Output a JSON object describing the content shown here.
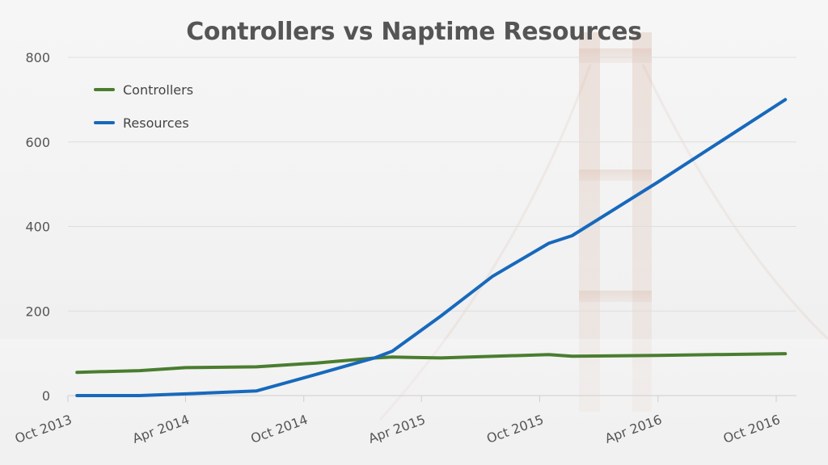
{
  "chart_data": {
    "type": "line",
    "title": "Controllers vs Naptime Resources",
    "xlabel": "",
    "ylabel": "",
    "ylim": [
      0,
      800
    ],
    "yticks": [
      0,
      200,
      400,
      600,
      800
    ],
    "xticks": [
      "Oct 2013",
      "Apr 2014",
      "Oct 2014",
      "Apr 2015",
      "Oct 2015",
      "Apr 2016",
      "Oct 2016"
    ],
    "grid": true,
    "legend_position": "top-left",
    "series": [
      {
        "name": "Controllers",
        "color": "#4a7d2f",
        "points": [
          {
            "x": "2013-10-15",
            "y": 55
          },
          {
            "x": "2014-01-20",
            "y": 59
          },
          {
            "x": "2014-04-01",
            "y": 66
          },
          {
            "x": "2014-07-20",
            "y": 68
          },
          {
            "x": "2014-10-20",
            "y": 77
          },
          {
            "x": "2015-01-20",
            "y": 89
          },
          {
            "x": "2015-02-15",
            "y": 91
          },
          {
            "x": "2015-05-01",
            "y": 89
          },
          {
            "x": "2015-10-15",
            "y": 97
          },
          {
            "x": "2015-11-20",
            "y": 93
          },
          {
            "x": "2016-04-01",
            "y": 95
          },
          {
            "x": "2016-10-15",
            "y": 99
          }
        ]
      },
      {
        "name": "Resources",
        "color": "#1769bc",
        "points": [
          {
            "x": "2013-10-15",
            "y": 0
          },
          {
            "x": "2014-01-20",
            "y": 0
          },
          {
            "x": "2014-04-01",
            "y": 4
          },
          {
            "x": "2014-07-20",
            "y": 11
          },
          {
            "x": "2014-10-20",
            "y": 50
          },
          {
            "x": "2015-01-20",
            "y": 90
          },
          {
            "x": "2015-02-15",
            "y": 105
          },
          {
            "x": "2015-05-01",
            "y": 188
          },
          {
            "x": "2015-07-20",
            "y": 282
          },
          {
            "x": "2015-10-15",
            "y": 360
          },
          {
            "x": "2015-11-20",
            "y": 378
          },
          {
            "x": "2016-04-01",
            "y": 505
          },
          {
            "x": "2016-10-15",
            "y": 700
          }
        ]
      }
    ]
  }
}
